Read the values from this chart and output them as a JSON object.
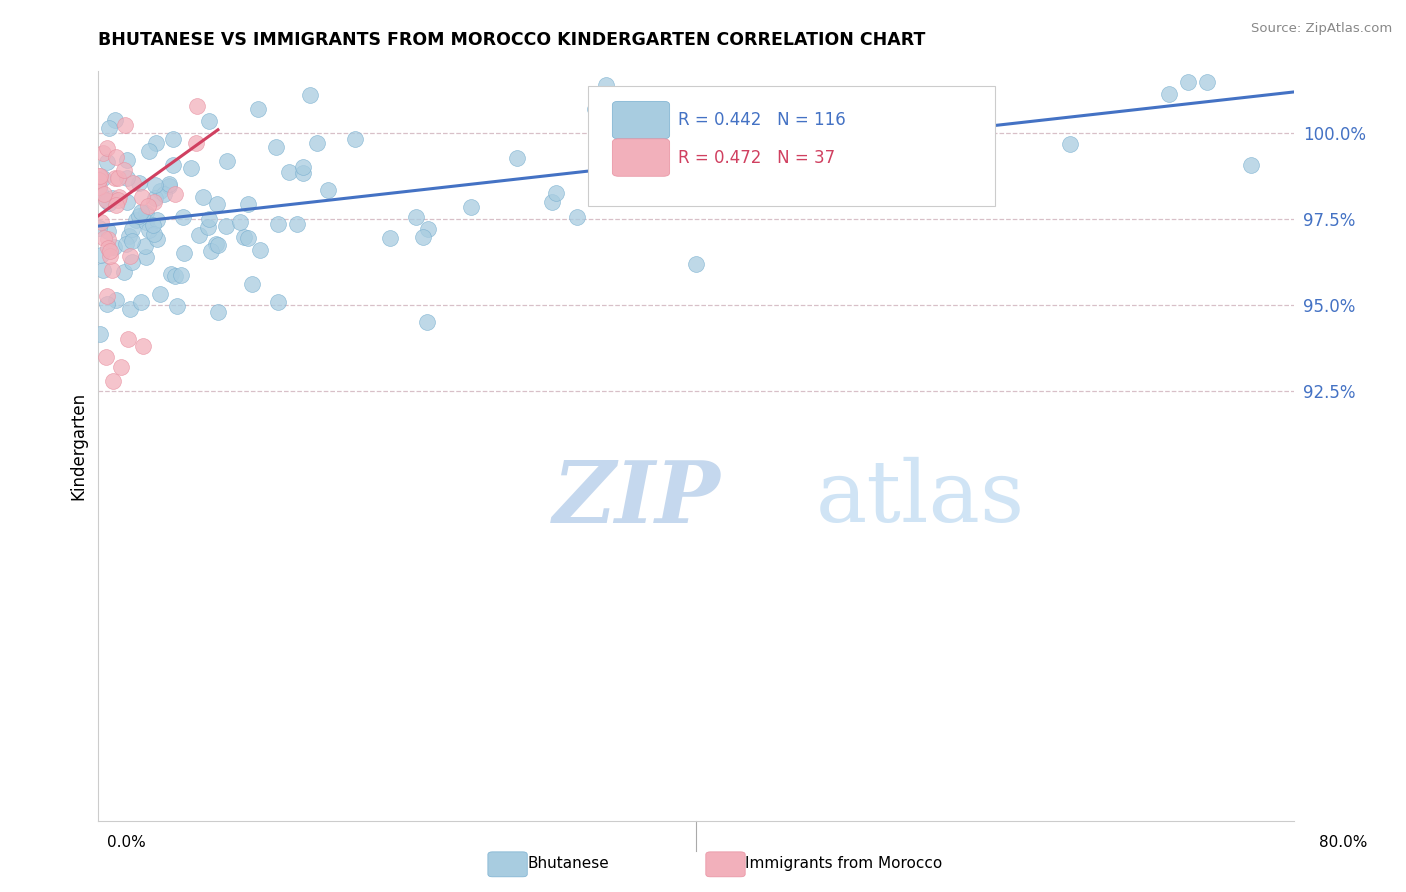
{
  "title": "BHUTANESE VS IMMIGRANTS FROM MOROCCO KINDERGARTEN CORRELATION CHART",
  "source": "Source: ZipAtlas.com",
  "ylabel": "Kindergarten",
  "xmin": 0.0,
  "xmax": 80.0,
  "ymin": 80.0,
  "ymax": 101.8,
  "yticks": [
    92.5,
    95.0,
    97.5,
    100.0
  ],
  "ytick_labels": [
    "92.5%",
    "95.0%",
    "97.5%",
    "100.0%"
  ],
  "blue_R": 0.442,
  "blue_N": 116,
  "pink_R": 0.472,
  "pink_N": 37,
  "blue_color": "#a8cce0",
  "pink_color": "#f2b0bb",
  "blue_edge_color": "#7ab0d0",
  "pink_edge_color": "#e890a0",
  "blue_line_color": "#4472c4",
  "pink_line_color": "#d04060",
  "grid_color": "#d8c0c8",
  "legend_blue_label": "Bhutanese",
  "legend_pink_label": "Immigrants from Morocco",
  "watermark_zip": "ZIP",
  "watermark_atlas": "atlas",
  "watermark_color": "#c5d8ee",
  "blue_trend_x0": 0.0,
  "blue_trend_y0": 97.3,
  "blue_trend_x1": 80.0,
  "blue_trend_y1": 101.2,
  "pink_trend_x0": 0.0,
  "pink_trend_y0": 97.6,
  "pink_trend_x1": 8.0,
  "pink_trend_y1": 100.1
}
